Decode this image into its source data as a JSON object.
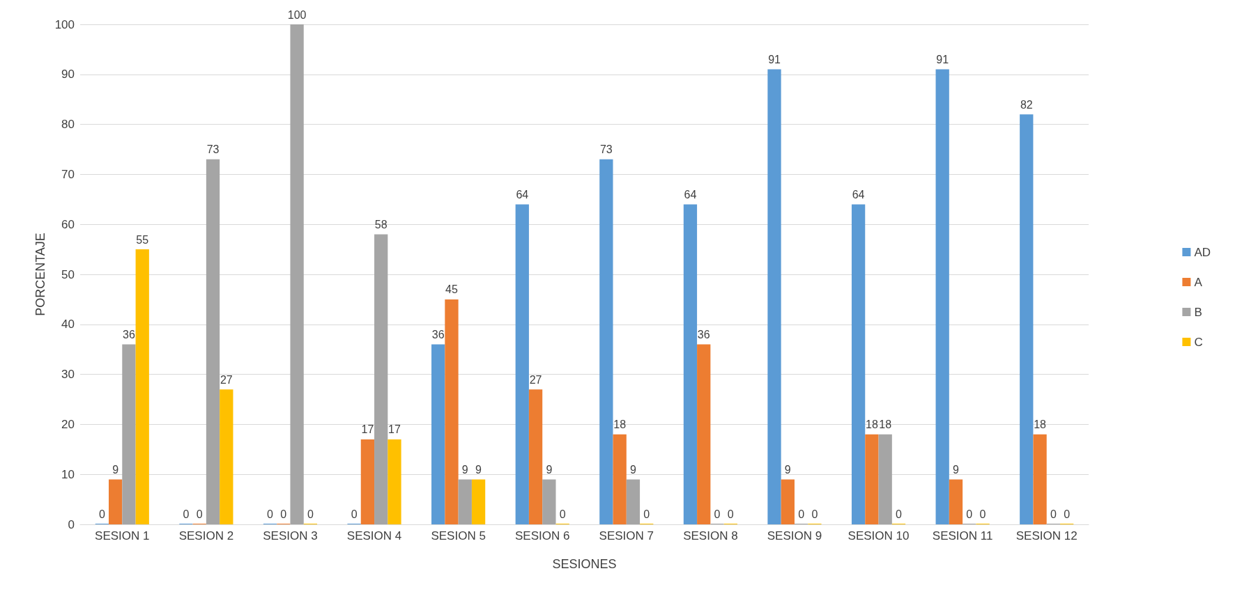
{
  "chart_data": {
    "type": "bar",
    "xlabel": "SESIONES",
    "ylabel": "PORCENTAJE",
    "categories": [
      "SESION 1",
      "SESION 2",
      "SESION 3",
      "SESION 4",
      "SESION 5",
      "SESION 6",
      "SESION 7",
      "SESION 8",
      "SESION 9",
      "SESION 10",
      "SESION 11",
      "SESION 12"
    ],
    "series": [
      {
        "name": "AD",
        "color": "#5b9bd5",
        "values": [
          0,
          0,
          0,
          0,
          36,
          64,
          73,
          64,
          91,
          64,
          91,
          82
        ]
      },
      {
        "name": "A",
        "color": "#ed7d31",
        "values": [
          9,
          0,
          0,
          17,
          45,
          27,
          18,
          36,
          9,
          18,
          9,
          18
        ]
      },
      {
        "name": "B",
        "color": "#a5a5a5",
        "values": [
          36,
          73,
          100,
          58,
          9,
          9,
          9,
          0,
          0,
          18,
          0,
          0
        ]
      },
      {
        "name": "C",
        "color": "#ffc000",
        "values": [
          55,
          27,
          0,
          17,
          9,
          0,
          0,
          0,
          0,
          0,
          0,
          0
        ]
      }
    ],
    "ylim": [
      0,
      100
    ],
    "yticks": [
      0,
      10,
      20,
      30,
      40,
      50,
      60,
      70,
      80,
      90,
      100
    ],
    "grid": "y",
    "legend": "right",
    "data_labels": true
  }
}
